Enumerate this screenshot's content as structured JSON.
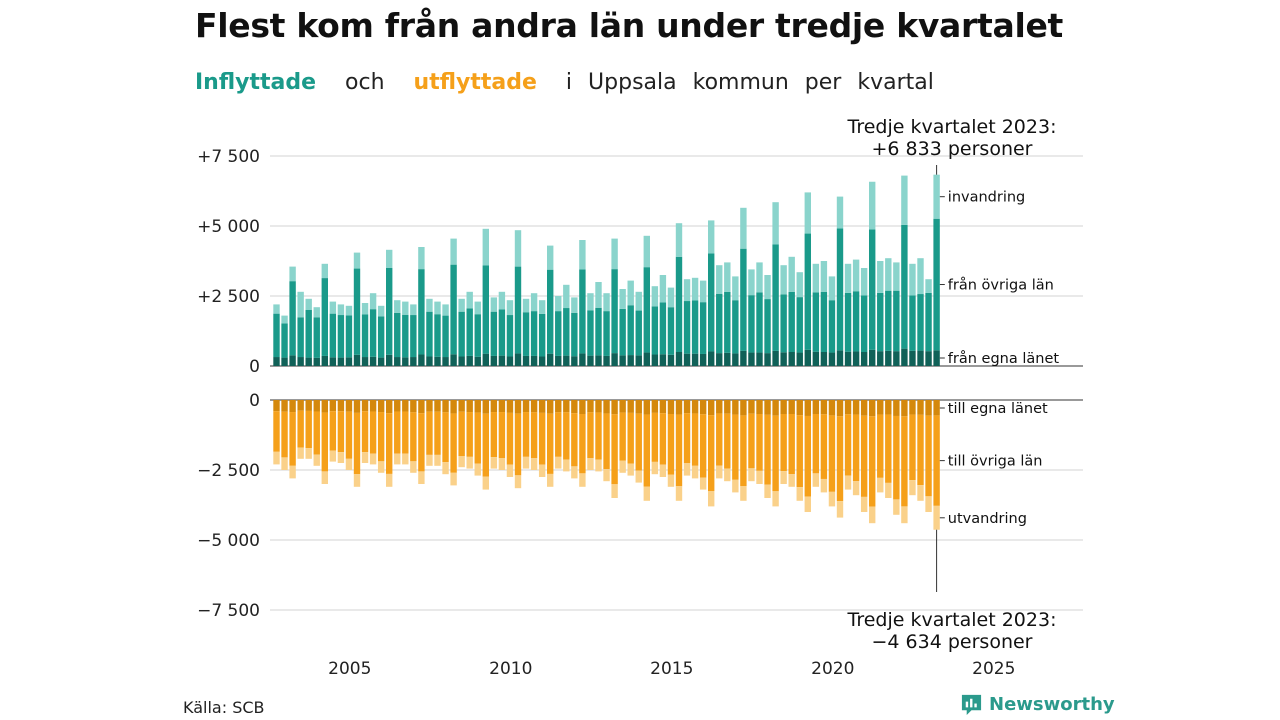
{
  "header": {
    "title": "Flest kom från andra län under tredje kvartalet",
    "subtitle": {
      "inflow": "Inflyttade",
      "och": "och",
      "outflow": "utflyttade",
      "i": "i",
      "place": "Uppsala",
      "kommun": "kommun",
      "per": "per",
      "kvartal": "kvartal"
    }
  },
  "source": "Källa: SCB",
  "brand": "Newsworthy",
  "colors": {
    "in_own": "#106158",
    "in_other": "#1a9a8a",
    "in_abroad": "#8ad4cc",
    "out_own": "#d4880c",
    "out_other": "#f5a01a",
    "out_abroad": "#fad18a",
    "brand": "#2b9a8c"
  },
  "chart_data": [
    {
      "type": "bar",
      "stacked": true,
      "panel": "inflyttade",
      "y_ticks": [
        "0",
        "+2 500",
        "+5 000",
        "+7 500"
      ],
      "y_tick_values": [
        0,
        2500,
        5000,
        7500
      ],
      "ylim": [
        0,
        7500
      ],
      "grid": true,
      "segment_labels": [
        "invandring",
        "från övriga län",
        "från egna länet"
      ],
      "annotation": {
        "line1": "Tredje kvartalet 2023:",
        "line2": "+6 833 personer",
        "value": 6833
      },
      "x_start": "2003-Q1",
      "totals": [
        2200,
        1800,
        3550,
        2650,
        2400,
        2100,
        3650,
        2300,
        2200,
        2150,
        4050,
        2250,
        2600,
        2150,
        4150,
        2350,
        2300,
        2200,
        4250,
        2400,
        2300,
        2200,
        4550,
        2400,
        2650,
        2300,
        4900,
        2450,
        2650,
        2350,
        4850,
        2400,
        2600,
        2350,
        4300,
        2500,
        2900,
        2450,
        4500,
        2600,
        3000,
        2600,
        4550,
        2750,
        3050,
        2650,
        4650,
        2850,
        3250,
        2800,
        5100,
        3100,
        3150,
        3050,
        5200,
        3600,
        3700,
        3200,
        5650,
        3450,
        3700,
        3250,
        5850,
        3600,
        3900,
        3350,
        6200,
        3650,
        3750,
        3200,
        6050,
        3650,
        3800,
        3500,
        6600,
        3750,
        3850,
        3700,
        6800,
        3650,
        3850,
        3100,
        6833
      ],
      "from_own_county": [
        320,
        300,
        380,
        320,
        300,
        290,
        360,
        310,
        300,
        310,
        400,
        320,
        330,
        300,
        400,
        320,
        310,
        320,
        410,
        340,
        330,
        320,
        420,
        340,
        360,
        330,
        440,
        360,
        370,
        340,
        450,
        360,
        360,
        340,
        440,
        360,
        370,
        350,
        450,
        370,
        380,
        360,
        460,
        380,
        390,
        380,
        480,
        410,
        420,
        400,
        500,
        440,
        440,
        430,
        520,
        460,
        470,
        450,
        540,
        480,
        480,
        460,
        540,
        490,
        500,
        480,
        580,
        510,
        500,
        480,
        560,
        510,
        520,
        500,
        580,
        530,
        540,
        530,
        620,
        540,
        550,
        530,
        560
      ],
      "from_other_counties": [
        1550,
        1220,
        2650,
        1420,
        1700,
        1450,
        2780,
        1560,
        1520,
        1500,
        3080,
        1520,
        1700,
        1470,
        3100,
        1580,
        1520,
        1500,
        3050,
        1600,
        1520,
        1480,
        3200,
        1600,
        1700,
        1520,
        3150,
        1580,
        1650,
        1480,
        3100,
        1560,
        1600,
        1520,
        3000,
        1600,
        1700,
        1550,
        3000,
        1620,
        1700,
        1600,
        3000,
        1660,
        1780,
        1600,
        3050,
        1720,
        1850,
        1700,
        3400,
        1880,
        1900,
        1850,
        3500,
        2120,
        2180,
        1900,
        3650,
        2050,
        2150,
        1930,
        3800,
        2070,
        2150,
        1980,
        4150,
        2120,
        2150,
        1870,
        4350,
        2100,
        2150,
        2020,
        4300,
        2080,
        2150,
        2160,
        4420,
        1980,
        2020,
        2080,
        4700
      ],
      "immigration": [
        330,
        280,
        520,
        910,
        400,
        360,
        510,
        430,
        380,
        340,
        570,
        410,
        570,
        380,
        650,
        450,
        470,
        380,
        790,
        460,
        450,
        400,
        930,
        460,
        590,
        450,
        1310,
        510,
        630,
        530,
        1300,
        480,
        640,
        490,
        860,
        540,
        830,
        550,
        1050,
        610,
        920,
        640,
        1090,
        710,
        880,
        670,
        1120,
        720,
        980,
        700,
        1200,
        780,
        810,
        770,
        1180,
        1020,
        1050,
        850,
        1460,
        920,
        1070,
        860,
        1510,
        1040,
        1250,
        890,
        1470,
        1020,
        1100,
        850,
        1140,
        1040,
        1130,
        980,
        1700,
        1140,
        1160,
        1010,
        1760,
        1130,
        1280,
        490,
        1573
      ]
    },
    {
      "type": "bar",
      "stacked": true,
      "panel": "utflyttade",
      "y_ticks": [
        "0",
        "−2 500",
        "−5 000",
        "−7 500"
      ],
      "y_tick_values": [
        0,
        -2500,
        -5000,
        -7500
      ],
      "ylim": [
        -7500,
        0
      ],
      "grid": true,
      "segment_labels": [
        "till egna länet",
        "till övriga län",
        "utvandring"
      ],
      "annotation": {
        "line1": "Tredje kvartalet 2023:",
        "line2": "−4 634 personer",
        "value": -4634
      },
      "x_start": "2003-Q1",
      "x_ticks": [
        "2005",
        "2010",
        "2015",
        "2020",
        "2025"
      ],
      "x_tick_positions": [
        2005,
        2010,
        2015,
        2020,
        2025
      ],
      "totals": [
        -2300,
        -2500,
        -2800,
        -2100,
        -2100,
        -2350,
        -3000,
        -2200,
        -2250,
        -2500,
        -3100,
        -2250,
        -2300,
        -2600,
        -3100,
        -2300,
        -2300,
        -2600,
        -3000,
        -2350,
        -2350,
        -2650,
        -3050,
        -2400,
        -2450,
        -2700,
        -3200,
        -2450,
        -2500,
        -2750,
        -3150,
        -2450,
        -2500,
        -2750,
        -3100,
        -2450,
        -2550,
        -2800,
        -3100,
        -2500,
        -2550,
        -2900,
        -3500,
        -2600,
        -2700,
        -2950,
        -3600,
        -2650,
        -2750,
        -3100,
        -3600,
        -2700,
        -2800,
        -3200,
        -3800,
        -2800,
        -2900,
        -3300,
        -3600,
        -2900,
        -3000,
        -3500,
        -3800,
        -3000,
        -3100,
        -3600,
        -4000,
        -3100,
        -3300,
        -3800,
        -4200,
        -3200,
        -3400,
        -4000,
        -4400,
        -3300,
        -3500,
        -4100,
        -4400,
        -3400,
        -3600,
        -4000,
        -4634
      ],
      "to_own_county": [
        -400,
        -420,
        -430,
        -380,
        -390,
        -410,
        -450,
        -400,
        -400,
        -420,
        -460,
        -400,
        -410,
        -430,
        -470,
        -410,
        -410,
        -440,
        -470,
        -420,
        -420,
        -440,
        -480,
        -420,
        -430,
        -450,
        -490,
        -430,
        -430,
        -460,
        -490,
        -430,
        -440,
        -460,
        -490,
        -440,
        -440,
        -470,
        -500,
        -440,
        -450,
        -480,
        -510,
        -450,
        -460,
        -490,
        -520,
        -460,
        -470,
        -500,
        -520,
        -470,
        -480,
        -510,
        -540,
        -480,
        -490,
        -520,
        -550,
        -490,
        -500,
        -530,
        -560,
        -500,
        -500,
        -540,
        -570,
        -500,
        -510,
        -550,
        -580,
        -510,
        -520,
        -560,
        -580,
        -520,
        -520,
        -570,
        -580,
        -520,
        -530,
        -560,
        -550
      ],
      "to_other_counties": [
        -1450,
        -1630,
        -1920,
        -1320,
        -1330,
        -1540,
        -2100,
        -1410,
        -1460,
        -1680,
        -2190,
        -1460,
        -1500,
        -1760,
        -2170,
        -1500,
        -1500,
        -1750,
        -2080,
        -1540,
        -1540,
        -1780,
        -2120,
        -1580,
        -1600,
        -1820,
        -2250,
        -1610,
        -1650,
        -1850,
        -2200,
        -1600,
        -1640,
        -1850,
        -2150,
        -1590,
        -1690,
        -1900,
        -2120,
        -1640,
        -1680,
        -1990,
        -2500,
        -1720,
        -1810,
        -2030,
        -2570,
        -1750,
        -1840,
        -2170,
        -2560,
        -1780,
        -1870,
        -2260,
        -2710,
        -1860,
        -1960,
        -2330,
        -2530,
        -1950,
        -2030,
        -2490,
        -2700,
        -2040,
        -2150,
        -2570,
        -2880,
        -2120,
        -2310,
        -2730,
        -3030,
        -2190,
        -2380,
        -2900,
        -3230,
        -2260,
        -2440,
        -2980,
        -3220,
        -2340,
        -2510,
        -2880,
        -3230
      ],
      "emigration": [
        -450,
        -450,
        -450,
        -400,
        -380,
        -400,
        -450,
        -390,
        -390,
        -400,
        -450,
        -390,
        -390,
        -410,
        -460,
        -390,
        -390,
        -410,
        -450,
        -390,
        -390,
        -430,
        -450,
        -400,
        -420,
        -430,
        -460,
        -410,
        -420,
        -440,
        -460,
        -420,
        -420,
        -440,
        -460,
        -420,
        -420,
        -430,
        -480,
        -420,
        -420,
        -430,
        -490,
        -430,
        -430,
        -430,
        -510,
        -440,
        -440,
        -430,
        -520,
        -450,
        -450,
        -430,
        -550,
        -460,
        -450,
        -450,
        -520,
        -460,
        -470,
        -480,
        -540,
        -460,
        -450,
        -490,
        -550,
        -480,
        -480,
        -520,
        -590,
        -500,
        -500,
        -540,
        -590,
        -520,
        -540,
        -550,
        -600,
        -540,
        -560,
        -560,
        -854
      ]
    }
  ]
}
